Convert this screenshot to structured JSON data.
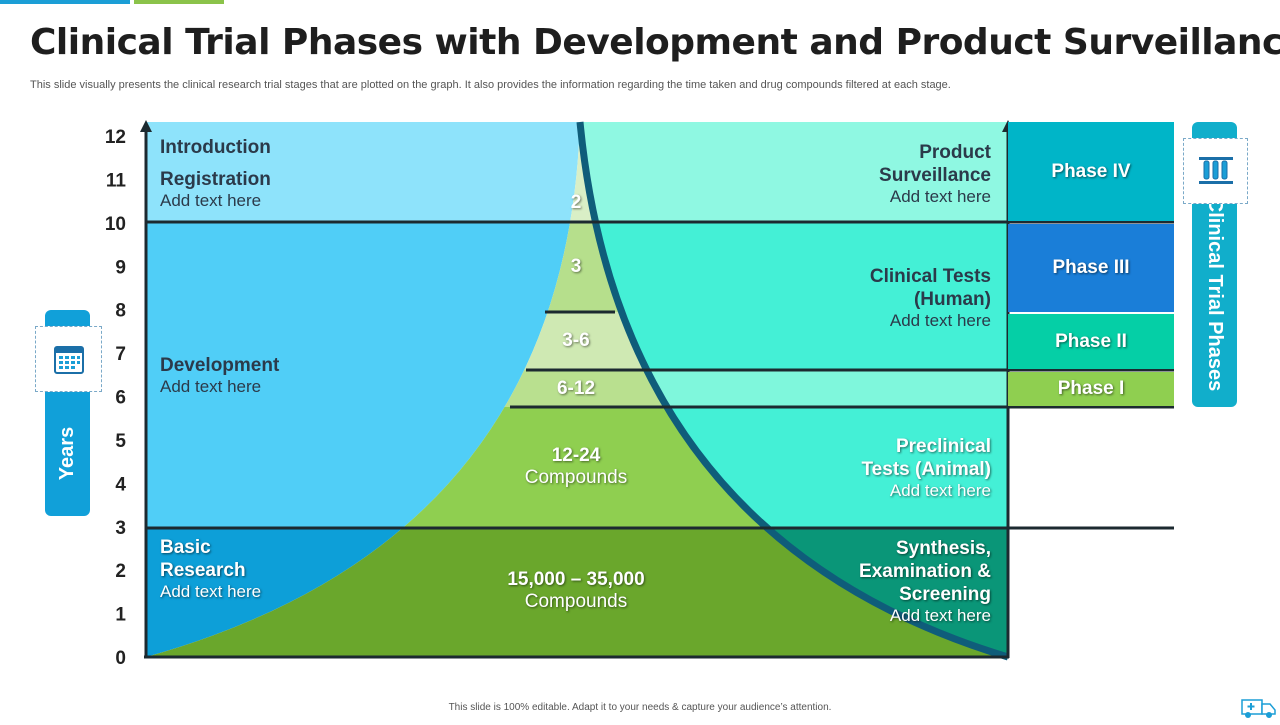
{
  "title": "Clinical Trial Phases with Development and Product Surveillance",
  "subtitle": "This slide visually presents the clinical research trial stages that are plotted on the graph. It also provides the information regarding the time taken and drug compounds filtered at each stage.",
  "footer": "This slide is 100% editable. Adapt it to your needs & capture your audience’s attention.",
  "y_axis": {
    "label": "Years",
    "ticks": [
      12,
      11,
      10,
      9,
      8,
      7,
      6,
      5,
      4,
      3,
      2,
      1,
      0
    ]
  },
  "right_axis_label": "Clinical Trial Phases",
  "left_stages": {
    "introduction": "Introduction",
    "registration": "Registration",
    "registration_sub": "Add text here",
    "development": "Development",
    "development_sub": "Add text here",
    "basic_research_1": "Basic",
    "basic_research_2": "Research",
    "basic_research_sub": "Add text here"
  },
  "right_stages": {
    "product_1": "Product",
    "product_2": "Surveillance",
    "product_sub": "Add text here",
    "clinical_1": "Clinical Tests",
    "clinical_2": "(Human)",
    "clinical_sub": "Add text here",
    "preclinical_1": "Preclinical",
    "preclinical_2": "Tests (Animal)",
    "preclinical_sub": "Add text here",
    "synthesis_1": "Synthesis,",
    "synthesis_2": "Examination &",
    "synthesis_3": "Screening",
    "synthesis_sub": "Add text here"
  },
  "compounds": {
    "c1": "2",
    "c2": "3",
    "c3": "3-6",
    "c4": "6-12",
    "c5": "12-24",
    "c5_sub": "Compounds",
    "c6": "15,000 – 35,000",
    "c6_sub": "Compounds"
  },
  "phases": {
    "p4": "Phase IV",
    "p3": "Phase III",
    "p2": "Phase II",
    "p1": "Phase I"
  },
  "colors": {
    "accent_blue": "#1b9ed6",
    "accent_green": "#8bc34a",
    "phase_iv": "#00b5c8",
    "phase_iii": "#1a7ed8",
    "phase_ii": "#05cfa6",
    "phase_i": "#8fcf50",
    "years_tab": "#11a0d9",
    "phases_tab": "#11aecb"
  },
  "icons": {
    "years_icon": "calendar-icon",
    "phases_icon": "test-tubes-icon",
    "corner_icon": "ambulance-icon"
  }
}
